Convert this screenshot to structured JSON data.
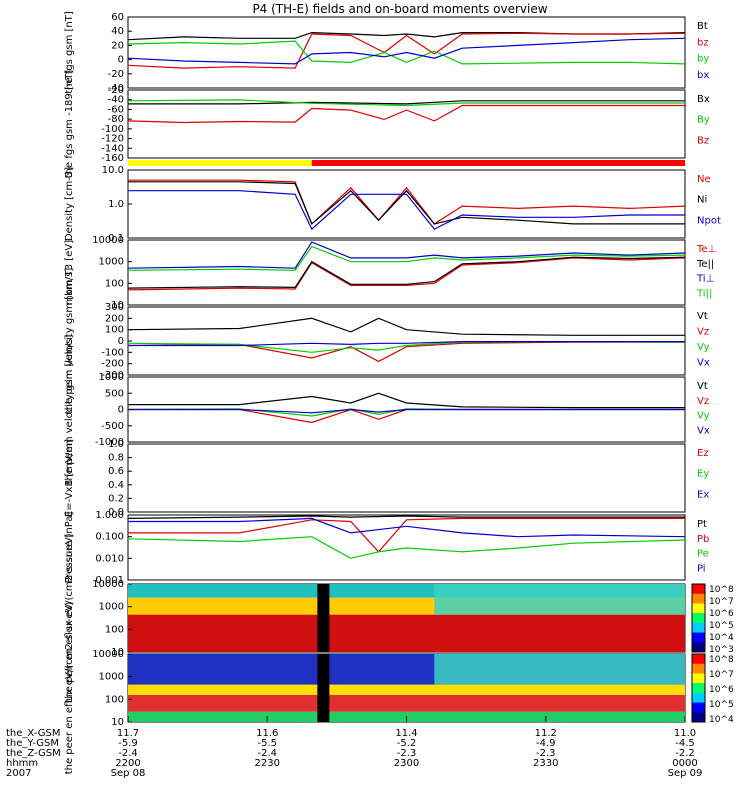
{
  "title": "P4 (TH-E) fields and on-board moments overview",
  "colors": {
    "black": "#000000",
    "red": "#dd0000",
    "green": "#00cc00",
    "blue": "#0000cc",
    "yellow": "#ffff00",
    "crimson": "#ff0000"
  },
  "chart_data": [
    {
      "type": "line",
      "ylabel": "the fgs gsm [nT]",
      "ylim": [
        -40,
        60
      ],
      "yticks": [
        "60",
        "40",
        "20",
        "0",
        "-20",
        "-40"
      ],
      "legend": [
        {
          "name": "Bt",
          "color": "#000000"
        },
        {
          "name": "bz",
          "color": "#dd0000"
        },
        {
          "name": "by",
          "color": "#00cc00"
        },
        {
          "name": "bx",
          "color": "#0000cc"
        }
      ],
      "series": [
        {
          "name": "Bt",
          "color": "#000000",
          "x": [
            0,
            0.1,
            0.2,
            0.3,
            0.33,
            0.4,
            0.46,
            0.5,
            0.55,
            0.6,
            0.7,
            0.8,
            0.9,
            1.0
          ],
          "y": [
            28,
            32,
            30,
            30,
            38,
            36,
            34,
            36,
            32,
            38,
            38,
            36,
            36,
            38
          ]
        },
        {
          "name": "bz",
          "color": "#dd0000",
          "x": [
            0,
            0.1,
            0.2,
            0.3,
            0.33,
            0.4,
            0.46,
            0.5,
            0.55,
            0.6,
            0.7,
            0.8,
            0.9,
            1.0
          ],
          "y": [
            -8,
            -12,
            -10,
            -12,
            36,
            34,
            10,
            34,
            8,
            36,
            37,
            36,
            36,
            37
          ]
        },
        {
          "name": "by",
          "color": "#00cc00",
          "x": [
            0,
            0.1,
            0.2,
            0.3,
            0.33,
            0.4,
            0.46,
            0.5,
            0.55,
            0.6,
            0.7,
            0.8,
            0.9,
            1.0
          ],
          "y": [
            22,
            24,
            22,
            26,
            -2,
            -4,
            10,
            -4,
            12,
            -6,
            -5,
            -4,
            -4,
            -6
          ]
        },
        {
          "name": "bx",
          "color": "#0000cc",
          "x": [
            0,
            0.1,
            0.2,
            0.3,
            0.33,
            0.4,
            0.46,
            0.5,
            0.55,
            0.6,
            0.7,
            0.8,
            0.9,
            1.0
          ],
          "y": [
            2,
            -2,
            -4,
            -6,
            8,
            10,
            4,
            10,
            2,
            16,
            20,
            24,
            28,
            30
          ]
        }
      ]
    },
    {
      "type": "line",
      "ylabel": "the fgs gsm -189 [nT]",
      "ylim": [
        -180,
        40
      ],
      "yticks": [
        "-20",
        "-40",
        "-60",
        "-80",
        "-100",
        "-120",
        "-140",
        "-160"
      ],
      "legend": [
        {
          "name": "Bx",
          "color": "#000000"
        },
        {
          "name": "By",
          "color": "#00cc00"
        },
        {
          "name": "Bz",
          "color": "#dd0000"
        }
      ],
      "series": [
        {
          "name": "Bx",
          "color": "#000000",
          "x": [
            0,
            0.2,
            0.33,
            0.5,
            0.6,
            0.8,
            1.0
          ],
          "y": [
            -5,
            -5,
            0,
            -5,
            5,
            5,
            5
          ]
        },
        {
          "name": "By",
          "color": "#00cc00",
          "x": [
            0,
            0.2,
            0.33,
            0.5,
            0.6,
            0.8,
            1.0
          ],
          "y": [
            5,
            8,
            -3,
            -10,
            -2,
            -2,
            -2
          ]
        },
        {
          "name": "Bz",
          "color": "#dd0000",
          "x": [
            0,
            0.1,
            0.2,
            0.3,
            0.33,
            0.4,
            0.46,
            0.5,
            0.55,
            0.6,
            0.7,
            0.8,
            0.9,
            1.0
          ],
          "y": [
            -60,
            -65,
            -62,
            -64,
            -20,
            -25,
            -55,
            -25,
            -60,
            -10,
            -10,
            -10,
            -10,
            -10
          ]
        }
      ]
    },
    {
      "type": "line",
      "ylabel": "Density [cm-3]",
      "yscale": "log",
      "ylim": [
        0.1,
        20
      ],
      "yticks": [
        "10.0",
        "1.0",
        "0.1"
      ],
      "legend": [
        {
          "name": "Ne",
          "color": "#dd0000"
        },
        {
          "name": "Ni",
          "color": "#000000"
        },
        {
          "name": "Npot",
          "color": "#0000cc"
        }
      ],
      "series": [
        {
          "name": "Ne",
          "color": "#dd0000",
          "x": [
            0,
            0.2,
            0.3,
            0.33,
            0.4,
            0.45,
            0.5,
            0.55,
            0.6,
            0.7,
            0.8,
            0.9,
            1.0
          ],
          "y": [
            9,
            9,
            8,
            0.3,
            5,
            0.4,
            5,
            0.3,
            1.2,
            1.0,
            1.2,
            1.0,
            1.2
          ]
        },
        {
          "name": "Ni",
          "color": "#000000",
          "x": [
            0,
            0.2,
            0.3,
            0.33,
            0.4,
            0.45,
            0.5,
            0.55,
            0.6,
            0.7,
            0.8,
            0.9,
            1.0
          ],
          "y": [
            8,
            8,
            7,
            0.3,
            4,
            0.4,
            4,
            0.3,
            0.5,
            0.4,
            0.3,
            0.3,
            0.3
          ]
        },
        {
          "name": "Npot",
          "color": "#0000cc",
          "x": [
            0,
            0.2,
            0.3,
            0.33,
            0.4,
            0.45,
            0.5,
            0.55,
            0.6,
            0.7,
            0.8,
            0.9,
            1.0
          ],
          "y": [
            4,
            4,
            3,
            0.2,
            3,
            3,
            3,
            0.2,
            0.6,
            0.5,
            0.5,
            0.6,
            0.6
          ]
        }
      ]
    },
    {
      "type": "line",
      "ylabel": "mom T3 [eV]",
      "yscale": "log",
      "ylim": [
        10,
        10000
      ],
      "yticks": [
        "10000",
        "1000",
        "100",
        "10"
      ],
      "legend": [
        {
          "name": "Te⊥",
          "color": "#dd0000"
        },
        {
          "name": "Te||",
          "color": "#000000"
        },
        {
          "name": "Ti⊥",
          "color": "#0000cc"
        },
        {
          "name": "Ti||",
          "color": "#00cc00"
        }
      ],
      "series": [
        {
          "name": "Te⊥",
          "color": "#dd0000",
          "x": [
            0,
            0.2,
            0.3,
            0.33,
            0.4,
            0.5,
            0.55,
            0.6,
            0.7,
            0.8,
            0.9,
            1.0
          ],
          "y": [
            50,
            60,
            55,
            900,
            80,
            80,
            100,
            700,
            900,
            1500,
            1200,
            1500
          ]
        },
        {
          "name": "Te||",
          "color": "#000000",
          "x": [
            0,
            0.2,
            0.3,
            0.33,
            0.4,
            0.5,
            0.55,
            0.6,
            0.7,
            0.8,
            0.9,
            1.0
          ],
          "y": [
            60,
            70,
            65,
            1000,
            90,
            90,
            120,
            800,
            1000,
            1600,
            1400,
            1600
          ]
        },
        {
          "name": "Ti⊥",
          "color": "#0000cc",
          "x": [
            0,
            0.2,
            0.3,
            0.33,
            0.4,
            0.5,
            0.55,
            0.6,
            0.7,
            0.8,
            0.9,
            1.0
          ],
          "y": [
            500,
            600,
            500,
            8000,
            1500,
            1500,
            2000,
            1500,
            1800,
            2500,
            2000,
            2500
          ]
        },
        {
          "name": "Ti||",
          "color": "#00cc00",
          "x": [
            0,
            0.2,
            0.3,
            0.33,
            0.4,
            0.5,
            0.55,
            0.6,
            0.7,
            0.8,
            0.9,
            1.0
          ],
          "y": [
            400,
            450,
            400,
            5000,
            1000,
            1000,
            1500,
            1200,
            1500,
            2000,
            1800,
            2000
          ]
        }
      ]
    },
    {
      "type": "line",
      "ylabel": "the peim velocity gsm [km/s]",
      "ylim": [
        -300,
        300
      ],
      "yticks": [
        "300",
        "200",
        "100",
        "0",
        "-100",
        "-200",
        "-300"
      ],
      "legend": [
        {
          "name": "Vt",
          "color": "#000000"
        },
        {
          "name": "Vz",
          "color": "#dd0000"
        },
        {
          "name": "Vy",
          "color": "#00cc00"
        },
        {
          "name": "Vx",
          "color": "#0000cc"
        }
      ],
      "series": [
        {
          "name": "Vt",
          "color": "#000000",
          "x": [
            0,
            0.2,
            0.33,
            0.4,
            0.45,
            0.5,
            0.6,
            0.8,
            1.0
          ],
          "y": [
            100,
            110,
            200,
            80,
            200,
            100,
            60,
            50,
            50
          ]
        },
        {
          "name": "Vz",
          "color": "#dd0000",
          "x": [
            0,
            0.2,
            0.33,
            0.4,
            0.45,
            0.5,
            0.6,
            0.8,
            1.0
          ],
          "y": [
            -40,
            -30,
            -150,
            -50,
            -180,
            -50,
            -20,
            -10,
            -10
          ]
        },
        {
          "name": "Vy",
          "color": "#00cc00",
          "x": [
            0,
            0.2,
            0.33,
            0.4,
            0.45,
            0.5,
            0.6,
            0.8,
            1.0
          ],
          "y": [
            -20,
            -30,
            -100,
            -60,
            -80,
            -40,
            -10,
            -5,
            -10
          ]
        },
        {
          "name": "Vx",
          "color": "#0000cc",
          "x": [
            0,
            0.2,
            0.33,
            0.4,
            0.45,
            0.5,
            0.6,
            0.8,
            1.0
          ],
          "y": [
            -40,
            -40,
            -20,
            -30,
            -20,
            -20,
            -5,
            -5,
            -5
          ]
        }
      ]
    },
    {
      "type": "line",
      "ylabel": "the peem velocity gsm [km/s]",
      "ylim": [
        -1000,
        1000
      ],
      "yticks": [
        "1000",
        "500",
        "0",
        "-500",
        "-1000"
      ],
      "legend": [
        {
          "name": "Vt",
          "color": "#000000"
        },
        {
          "name": "Vz",
          "color": "#dd0000"
        },
        {
          "name": "Vy",
          "color": "#00cc00"
        },
        {
          "name": "Vx",
          "color": "#0000cc"
        }
      ],
      "series": [
        {
          "name": "Vt",
          "color": "#000000",
          "x": [
            0,
            0.2,
            0.33,
            0.4,
            0.45,
            0.5,
            0.6,
            0.8,
            1.0
          ],
          "y": [
            150,
            150,
            400,
            200,
            500,
            200,
            80,
            60,
            60
          ]
        },
        {
          "name": "Vz",
          "color": "#dd0000",
          "x": [
            0,
            0.2,
            0.33,
            0.4,
            0.45,
            0.5,
            0.6,
            0.8,
            1.0
          ],
          "y": [
            0,
            0,
            -400,
            0,
            -300,
            0,
            0,
            0,
            0
          ]
        },
        {
          "name": "Vy",
          "color": "#00cc00",
          "x": [
            0,
            0.2,
            0.33,
            0.4,
            0.45,
            0.5,
            0.6,
            0.8,
            1.0
          ],
          "y": [
            0,
            20,
            -200,
            20,
            -150,
            20,
            0,
            0,
            0
          ]
        },
        {
          "name": "Vx",
          "color": "#0000cc",
          "x": [
            0,
            0.2,
            0.33,
            0.4,
            0.45,
            0.5,
            0.6,
            0.8,
            1.0
          ],
          "y": [
            0,
            0,
            -100,
            0,
            -80,
            0,
            0,
            0,
            0
          ]
        }
      ]
    },
    {
      "type": "line",
      "ylabel": "E=-VxB [mV/m]",
      "ylim": [
        0,
        1.0
      ],
      "yticks": [
        "1.0",
        "0.8",
        "0.6",
        "0.4",
        "0.2",
        "0.0"
      ],
      "legend": [
        {
          "name": "Ez",
          "color": "#dd0000"
        },
        {
          "name": "Ey",
          "color": "#00cc00"
        },
        {
          "name": "Ex",
          "color": "#0000cc"
        }
      ],
      "series": []
    },
    {
      "type": "line",
      "ylabel": "Pressure [nPa]",
      "yscale": "log",
      "ylim": [
        0.001,
        1.0
      ],
      "yticks": [
        "1.000",
        "0.100",
        "0.010",
        "0.001"
      ],
      "legend": [
        {
          "name": "Pt",
          "color": "#000000"
        },
        {
          "name": "Pb",
          "color": "#dd0000"
        },
        {
          "name": "Pe",
          "color": "#00cc00"
        },
        {
          "name": "Pi",
          "color": "#0000cc"
        }
      ],
      "series": [
        {
          "name": "Pt",
          "color": "#000000",
          "x": [
            0,
            0.2,
            0.33,
            0.4,
            0.5,
            0.6,
            0.8,
            1.0
          ],
          "y": [
            0.7,
            0.8,
            0.9,
            0.8,
            0.9,
            0.8,
            0.8,
            0.8
          ]
        },
        {
          "name": "Pb",
          "color": "#dd0000",
          "x": [
            0,
            0.2,
            0.33,
            0.4,
            0.45,
            0.5,
            0.6,
            0.8,
            1.0
          ],
          "y": [
            0.15,
            0.15,
            0.6,
            0.5,
            0.02,
            0.6,
            0.7,
            0.7,
            0.7
          ]
        },
        {
          "name": "Pe",
          "color": "#00cc00",
          "x": [
            0,
            0.2,
            0.33,
            0.4,
            0.45,
            0.5,
            0.6,
            0.7,
            0.8,
            1.0
          ],
          "y": [
            0.08,
            0.06,
            0.1,
            0.01,
            0.02,
            0.03,
            0.02,
            0.03,
            0.05,
            0.07
          ]
        },
        {
          "name": "Pi",
          "color": "#0000cc",
          "x": [
            0,
            0.2,
            0.33,
            0.4,
            0.5,
            0.6,
            0.7,
            0.8,
            1.0
          ],
          "y": [
            0.5,
            0.5,
            0.7,
            0.15,
            0.3,
            0.15,
            0.1,
            0.12,
            0.1
          ]
        }
      ]
    },
    {
      "type": "heatmap",
      "ylabel": "the peir en eflux eV/(cm2-s-sr-eV)",
      "yscale": "log",
      "ylim": [
        10,
        20000
      ],
      "yticks": [
        "10000",
        "1000",
        "100",
        "10"
      ],
      "colorbar": [
        "10^8",
        "10^7",
        "10^6",
        "10^5",
        "10^4",
        "10^3"
      ]
    },
    {
      "type": "heatmap",
      "ylabel": "the peer en eflux eV/(cm2-s-sr-eV)",
      "yscale": "log",
      "ylim": [
        10,
        20000
      ],
      "yticks": [
        "10000",
        "1000",
        "100",
        "10"
      ],
      "colorbar": [
        "10^8",
        "10^7",
        "10^6",
        "10^5",
        "10^4"
      ]
    }
  ],
  "xaxis": {
    "ticks": [
      {
        "v": 0.0,
        "rows": [
          "11.7",
          "-5.9",
          "-2.4",
          "2200",
          "Sep 08"
        ]
      },
      {
        "v": 0.25,
        "rows": [
          "11.6",
          "-5.5",
          "-2.4",
          "2230",
          ""
        ]
      },
      {
        "v": 0.5,
        "rows": [
          "11.4",
          "-5.2",
          "-2.3",
          "2300",
          ""
        ]
      },
      {
        "v": 0.75,
        "rows": [
          "11.2",
          "-4.9",
          "-2.3",
          "2330",
          ""
        ]
      },
      {
        "v": 1.0,
        "rows": [
          "11.0",
          "-4.5",
          "-2.2",
          "0000",
          "Sep 09"
        ]
      }
    ],
    "row_labels": [
      "the_X-GSM",
      "the_Y-GSM",
      "the_Z-GSM",
      "hhmm",
      "2007"
    ]
  },
  "mode_bar": {
    "segments": [
      {
        "from": 0,
        "to": 0.33,
        "color": "#ffff00"
      },
      {
        "from": 0.33,
        "to": 1.0,
        "color": "#ff0000"
      }
    ]
  }
}
